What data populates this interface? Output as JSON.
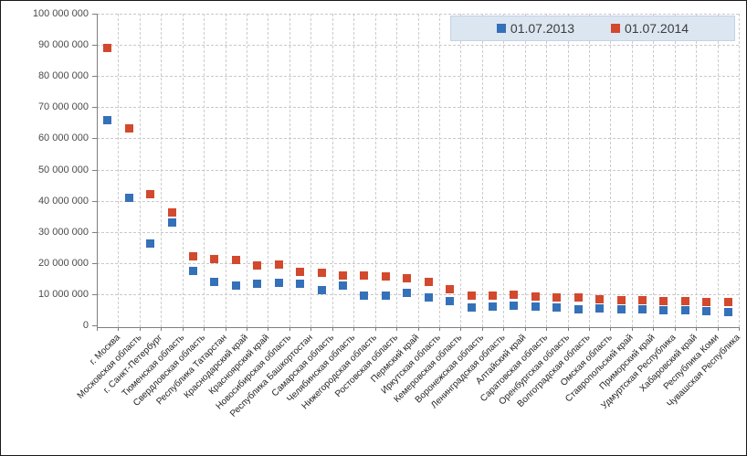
{
  "chart_data": {
    "type": "scatter",
    "title": "",
    "xlabel": "",
    "ylabel": "",
    "ylim": [
      0,
      100000000
    ],
    "ytick_step": 10000000,
    "grid": true,
    "legend_position": "top-right",
    "ytick_labels": [
      "0",
      "10 000 000",
      "20 000 000",
      "30 000 000",
      "40 000 000",
      "50 000 000",
      "60 000 000",
      "70 000 000",
      "80 000 000",
      "90 000 000",
      "100 000 000"
    ],
    "categories": [
      "г. Москва",
      "Московская область",
      "г. Санкт-Петербург",
      "Тюменская область",
      "Свердловская область",
      "Республика Татарстан",
      "Краснодарский край",
      "Красноярский край",
      "Новосибирская область",
      "Республика Башкортостан",
      "Самарская область",
      "Челябинская область",
      "Нижегородская область",
      "Ростовская область",
      "Пермский край",
      "Иркутская область",
      "Кемеровская область",
      "Воронежская область",
      "Ленинградская область",
      "Алтайский край",
      "Саратовская область",
      "Оренбургская область",
      "Волгоградская область",
      "Омская область",
      "Ставропольский край",
      "Приморский край",
      "Удмуртская Республика",
      "Хабаровский край",
      "Республика Коми",
      "Чувашская Республика"
    ],
    "series": [
      {
        "name": "01.07.2013",
        "color": "#3571b8",
        "values": [
          65900000,
          41000000,
          26300000,
          33000000,
          17500000,
          14000000,
          12800000,
          13200000,
          13700000,
          13400000,
          11300000,
          12900000,
          9500000,
          9600000,
          10500000,
          8800000,
          7900000,
          5600000,
          6100000,
          6200000,
          5900000,
          5800000,
          5100000,
          5400000,
          5200000,
          5000000,
          4800000,
          4700000,
          4500000,
          4300000
        ]
      },
      {
        "name": "01.07.2014",
        "color": "#d2492e",
        "values": [
          89000000,
          63300000,
          42200000,
          36300000,
          22000000,
          21400000,
          21000000,
          19300000,
          19400000,
          17200000,
          16900000,
          16100000,
          16000000,
          15700000,
          15200000,
          13800000,
          11700000,
          9400000,
          9500000,
          9800000,
          9300000,
          8800000,
          9000000,
          8500000,
          8200000,
          8000000,
          7800000,
          7700000,
          7600000,
          7400000
        ]
      }
    ]
  }
}
